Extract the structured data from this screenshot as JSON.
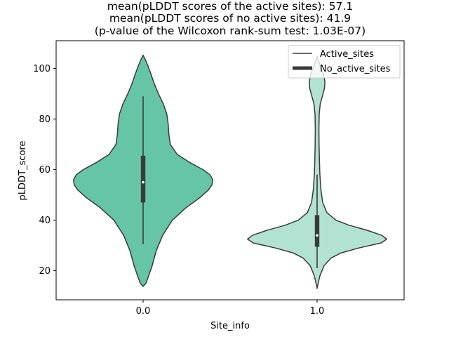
{
  "chart_data": {
    "type": "violin",
    "title_lines": [
      "mean(pLDDT scores of the active sites): 57.1",
      "mean(pLDDT scores of no active sites): 41.9",
      "(p-value of the Wilcoxon rank-sum test: 1.03E-07)"
    ],
    "xlabel": "Site_info",
    "ylabel": "pLDDT_score",
    "categories": [
      "0.0",
      "1.0"
    ],
    "ylim": [
      8.5,
      111
    ],
    "yticks": [
      20,
      40,
      60,
      80,
      100
    ],
    "legend": {
      "placement": "upper-right",
      "entries": [
        {
          "label": "Active_sites",
          "style": "thin"
        },
        {
          "label": "No_active_sites",
          "style": "thick"
        }
      ]
    },
    "series": [
      {
        "category": "0.0",
        "name": "Active_sites",
        "color": "#66c5a6",
        "density_profile": [
          [
            13.8,
            0.0
          ],
          [
            15,
            0.04
          ],
          [
            18,
            0.08
          ],
          [
            22,
            0.13
          ],
          [
            28,
            0.19
          ],
          [
            34,
            0.28
          ],
          [
            40,
            0.42
          ],
          [
            45,
            0.62
          ],
          [
            49,
            0.82
          ],
          [
            52,
            0.94
          ],
          [
            54,
            0.99
          ],
          [
            56,
            1.0
          ],
          [
            58,
            0.96
          ],
          [
            60,
            0.86
          ],
          [
            63,
            0.66
          ],
          [
            66,
            0.49
          ],
          [
            70,
            0.39
          ],
          [
            74,
            0.37
          ],
          [
            78,
            0.36
          ],
          [
            82,
            0.34
          ],
          [
            86,
            0.29
          ],
          [
            90,
            0.22
          ],
          [
            94,
            0.16
          ],
          [
            98,
            0.11
          ],
          [
            101,
            0.07
          ],
          [
            103,
            0.04
          ],
          [
            105.3,
            0.0
          ]
        ],
        "quartiles": [
          47,
          55,
          65.5
        ],
        "whiskers": [
          30.5,
          89
        ]
      },
      {
        "category": "1.0",
        "name": "No_active_sites",
        "color": "#b2e2d2",
        "density_profile": [
          [
            13,
            0.0
          ],
          [
            15,
            0.015
          ],
          [
            18,
            0.04
          ],
          [
            22,
            0.1
          ],
          [
            25,
            0.2
          ],
          [
            27,
            0.34
          ],
          [
            29,
            0.6
          ],
          [
            31,
            0.92
          ],
          [
            32.5,
            1.0
          ],
          [
            34,
            0.93
          ],
          [
            36,
            0.72
          ],
          [
            38,
            0.46
          ],
          [
            40,
            0.27
          ],
          [
            43,
            0.14
          ],
          [
            47,
            0.08
          ],
          [
            52,
            0.055
          ],
          [
            58,
            0.04
          ],
          [
            64,
            0.033
          ],
          [
            70,
            0.028
          ],
          [
            76,
            0.026
          ],
          [
            82,
            0.03
          ],
          [
            86,
            0.045
          ],
          [
            89,
            0.075
          ],
          [
            92,
            0.105
          ],
          [
            94.5,
            0.112
          ],
          [
            97,
            0.1
          ],
          [
            99,
            0.075
          ],
          [
            101,
            0.045
          ],
          [
            103,
            0.02
          ],
          [
            105,
            0.0
          ]
        ],
        "quartiles": [
          29.5,
          34,
          42
        ],
        "whiskers": [
          21,
          58
        ]
      }
    ],
    "colors": {
      "outline": "#3a3a3a",
      "box": "#3a3a3a",
      "median": "#ffffff"
    }
  }
}
